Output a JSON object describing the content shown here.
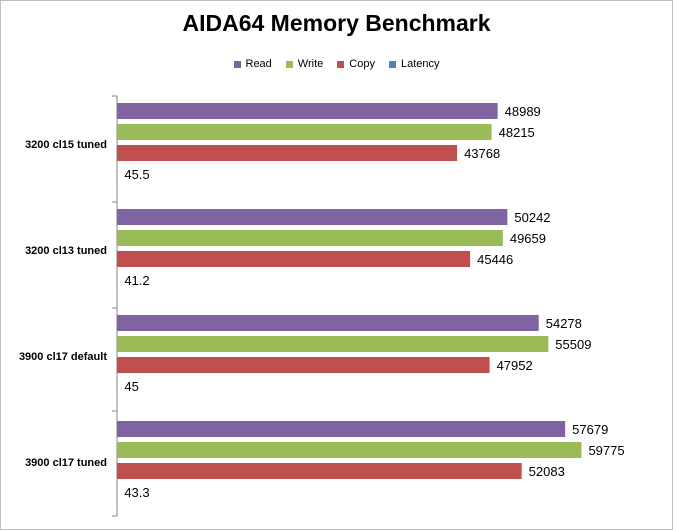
{
  "chart_data": {
    "type": "bar",
    "orientation": "horizontal",
    "title": "AIDA64 Memory Benchmark",
    "xlabel": "",
    "ylabel": "",
    "categories": [
      "3200 cl15 tuned",
      "3200 cl13 tuned",
      "3900 cl17 default",
      "3900 cl17 tuned"
    ],
    "series": [
      {
        "name": "Read",
        "color": "#8064a2",
        "values": [
          48989,
          50242,
          54278,
          57679
        ]
      },
      {
        "name": "Write",
        "color": "#9bbb59",
        "values": [
          48215,
          49659,
          55509,
          59775
        ]
      },
      {
        "name": "Copy",
        "color": "#c0504d",
        "values": [
          43768,
          45446,
          47952,
          52083
        ]
      },
      {
        "name": "Latency",
        "color": "#4f81bd",
        "values": [
          45.5,
          41.2,
          45,
          43.3
        ]
      }
    ],
    "xlim": [
      0,
      70000
    ],
    "grid": false,
    "legend_position": "top"
  }
}
